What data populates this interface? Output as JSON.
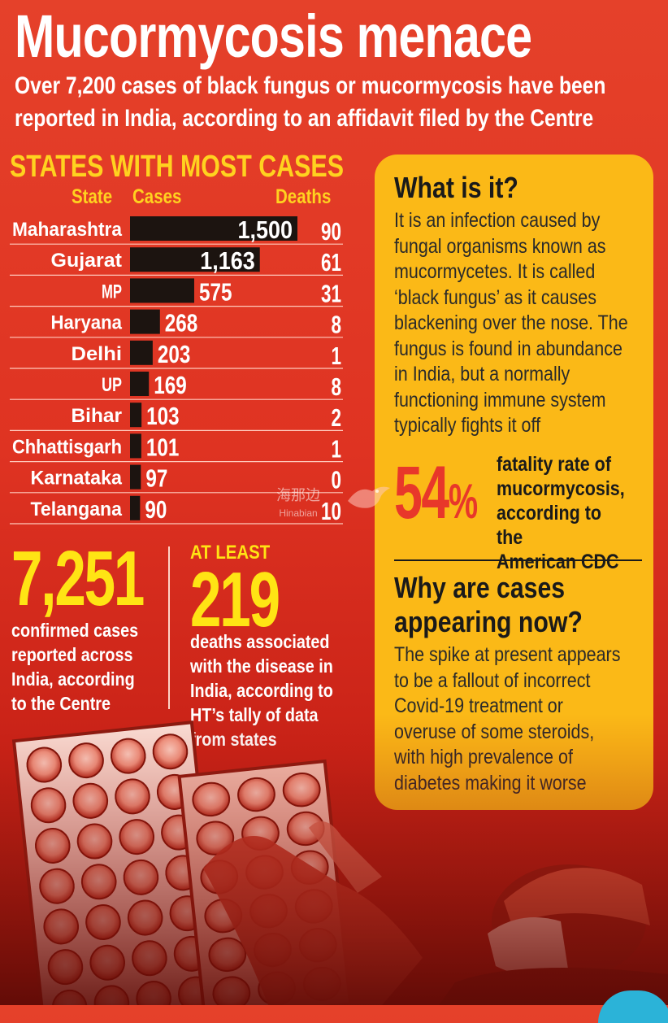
{
  "header": {
    "title": "Mucormycosis menace",
    "subtitle_lines": [
      "Over 7,200 cases of black fungus or mucormycosis have been",
      "reported in India, according to an affidavit filed by the Centre"
    ]
  },
  "states_section": {
    "heading": "STATES WITH MOST CASES",
    "col_state": "State",
    "col_cases": "Cases",
    "col_deaths": "Deaths"
  },
  "chart_data": {
    "type": "bar",
    "title": "STATES WITH MOST CASES",
    "categories": [
      "Maharashtra",
      "Gujarat",
      "MP",
      "Haryana",
      "Delhi",
      "UP",
      "Bihar",
      "Chhattisgarh",
      "Karnataka",
      "Telangana"
    ],
    "series": [
      {
        "name": "Cases",
        "values": [
          1500,
          1163,
          575,
          268,
          203,
          169,
          103,
          101,
          97,
          90
        ]
      },
      {
        "name": "Deaths",
        "values": [
          90,
          61,
          31,
          8,
          1,
          8,
          2,
          1,
          0,
          10
        ]
      }
    ],
    "value_labels": [
      "1,500",
      "1,163",
      "575",
      "268",
      "203",
      "169",
      "103",
      "101",
      "97",
      "90"
    ],
    "death_labels": [
      "90",
      "61",
      "31",
      "8",
      "1",
      "8",
      "2",
      "1",
      "0",
      "10"
    ],
    "xlim": [
      0,
      1500
    ],
    "grid": false,
    "legend": "none"
  },
  "stats": {
    "confirmed_number": "7,251",
    "confirmed_text": "confirmed cases\nreported across\nIndia, according\nto the Centre",
    "deaths_prefix": "AT LEAST",
    "deaths_number": "219",
    "deaths_text": "deaths associated\nwith the disease in\nIndia, according to\nHT’s tally of data\nfrom states"
  },
  "panel": {
    "what_heading": "What is it?",
    "what_body": "It is an infection caused by\nfungal organisms known as\nmucormycetes. It is called\n‘black fungus’ as it causes\nblackening over the nose. The\nfungus is found in abundance\nin India, but a normally\nfunctioning immune system\ntypically fights it off",
    "fatality_number": "54",
    "fatality_symbol": "%",
    "fatality_text": "fatality rate of\nmucormycosis,\naccording to the\nAmerican CDC",
    "why_heading": "Why are cases\nappearing now?",
    "why_body": "The spike at present appears\nto be a fallout of incorrect\nCovid-19 treatment or\noveruse of some steroids,\nwith high prevalence of\ndiabetes making it worse"
  },
  "watermark": {
    "line1": "海那边",
    "line2": "Hinabian"
  },
  "colors": {
    "background": "#e03a26",
    "accent_yellow": "#ffd21f",
    "panel": "#fbb917",
    "bar": "#1c1410",
    "percent_red": "#e8372a"
  }
}
